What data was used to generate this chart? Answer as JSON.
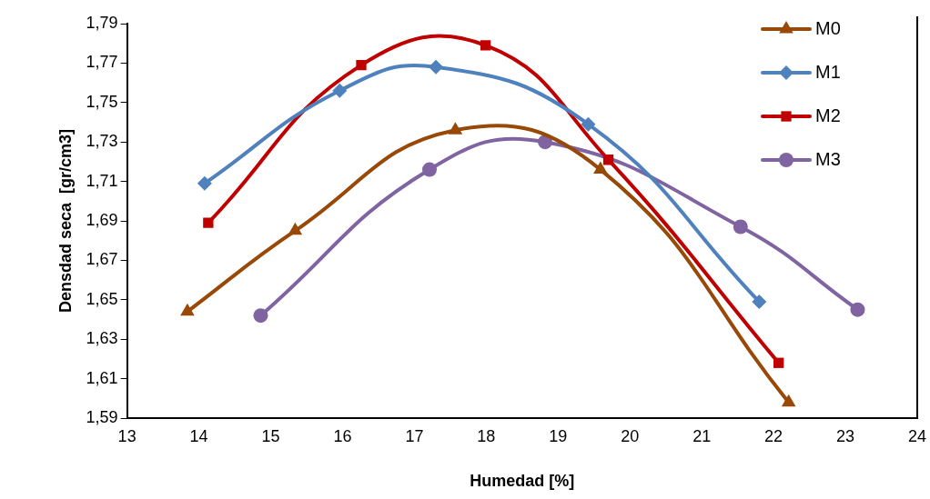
{
  "chart_data": {
    "type": "line",
    "xlabel": "Humedad [%]",
    "ylabel": "Densdad seca  [gr/cm3]",
    "xlim": [
      13,
      24
    ],
    "xticks": [
      13,
      14,
      15,
      16,
      17,
      18,
      19,
      20,
      21,
      22,
      23,
      24
    ],
    "ylim": [
      1.59,
      1.79
    ],
    "yticks": [
      {
        "value": 1.59,
        "label": "1,59"
      },
      {
        "value": 1.61,
        "label": "1,61"
      },
      {
        "value": 1.63,
        "label": "1,63"
      },
      {
        "value": 1.65,
        "label": "1,65"
      },
      {
        "value": 1.67,
        "label": "1,67"
      },
      {
        "value": 1.69,
        "label": "1,69"
      },
      {
        "value": 1.71,
        "label": "1,71"
      },
      {
        "value": 1.73,
        "label": "1,73"
      },
      {
        "value": 1.75,
        "label": "1,75"
      },
      {
        "value": 1.77,
        "label": "1,77"
      },
      {
        "value": 1.79,
        "label": "1,79"
      }
    ],
    "grid": false,
    "legend": "top right",
    "series": [
      {
        "name": "M0",
        "color": "#984807",
        "marker": "triangle",
        "x": [
          13.84,
          15.34,
          17.57,
          19.59,
          22.21
        ],
        "values": [
          1.644,
          1.685,
          1.736,
          1.716,
          1.598
        ]
      },
      {
        "name": "M1",
        "color": "#4f81bd",
        "marker": "diamond",
        "x": [
          14.08,
          15.96,
          17.3,
          19.42,
          21.8
        ],
        "values": [
          1.709,
          1.756,
          1.768,
          1.739,
          1.649
        ]
      },
      {
        "name": "M2",
        "color": "#c00000",
        "marker": "square",
        "x": [
          14.13,
          16.26,
          17.99,
          19.7,
          22.07
        ],
        "values": [
          1.689,
          1.769,
          1.779,
          1.721,
          1.618
        ]
      },
      {
        "name": "M3",
        "color": "#8064a2",
        "marker": "circle",
        "x": [
          14.86,
          17.21,
          18.82,
          21.54,
          23.17
        ],
        "values": [
          1.642,
          1.716,
          1.73,
          1.687,
          1.645
        ]
      }
    ]
  }
}
